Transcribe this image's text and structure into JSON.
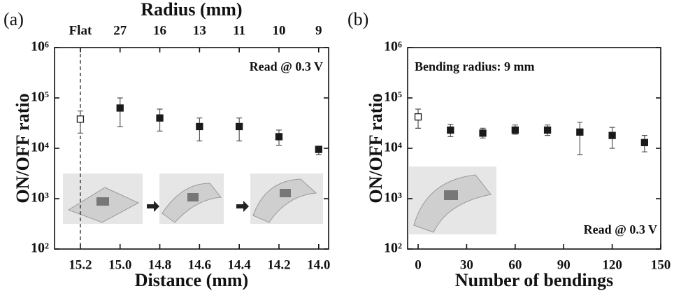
{
  "chart_data": [
    {
      "type": "scatter",
      "panel_label": "(a)",
      "title": "Radius (mm)",
      "top_labels": [
        "Flat",
        "27",
        "16",
        "13",
        "11",
        "10",
        "9"
      ],
      "x_label": "Distance (mm)",
      "y_label": "ON/OFF ratio",
      "annotations": [
        "Read @ 0.3 V"
      ],
      "x": [
        15.2,
        15.0,
        14.8,
        14.6,
        14.4,
        14.2,
        14.0
      ],
      "values": [
        38000,
        63000,
        40000,
        27000,
        27000,
        17000,
        9500
      ],
      "lower": [
        20000,
        27000,
        22000,
        14000,
        14000,
        11500,
        7500
      ],
      "upper": [
        55000,
        100000,
        60000,
        40000,
        40000,
        23000,
        11000
      ],
      "open_markers": [
        true,
        false,
        false,
        false,
        false,
        false,
        false
      ],
      "color": "#1a1a1a",
      "log_y": true,
      "dashed_line_at_first_x": true,
      "xlim": [
        15.33,
        13.95
      ],
      "xticks": [
        15.2,
        {
          "value": 15,
          "label": "15.0"
        },
        14.8,
        14.6,
        14.4,
        14.2,
        {
          "value": 14,
          "label": "14.0"
        }
      ],
      "ylim": [
        100,
        1000000
      ],
      "yticks": [
        {
          "value": 100,
          "label": "10²"
        },
        {
          "value": 1000,
          "label": "10³"
        },
        {
          "value": 10000,
          "label": "10⁴"
        },
        {
          "value": 100000,
          "label": "10⁵"
        },
        {
          "value": 1000000,
          "label": "10⁶"
        }
      ]
    },
    {
      "type": "scatter",
      "panel_label": "(b)",
      "x_label": "Number of bendings",
      "y_label": "ON/OFF ratio",
      "annotations": [
        "Bending radius: 9 mm",
        "Read @ 0.3 V"
      ],
      "x": [
        0,
        20,
        40,
        60,
        80,
        100,
        120,
        140
      ],
      "values": [
        42000,
        23000,
        20000,
        23000,
        23000,
        21000,
        18000,
        13000
      ],
      "lower": [
        25000,
        17000,
        16000,
        19000,
        18000,
        7500,
        10000,
        8500
      ],
      "upper": [
        60000,
        30000,
        25000,
        29000,
        29000,
        33000,
        26000,
        18000
      ],
      "open_markers": [
        true,
        false,
        false,
        false,
        false,
        false,
        false,
        false
      ],
      "color": "#1a1a1a",
      "log_y": true,
      "xlim": [
        -6.5,
        150
      ],
      "xticks": [
        0,
        30,
        60,
        90,
        120,
        150
      ],
      "ylim": [
        100,
        1000000
      ],
      "yticks": [
        {
          "value": 100,
          "label": "10²"
        },
        {
          "value": 1000,
          "label": "10³"
        },
        {
          "value": 10000,
          "label": "10⁴"
        },
        {
          "value": 100000,
          "label": "10⁵"
        },
        {
          "value": 1000000,
          "label": "10⁶"
        }
      ]
    }
  ]
}
